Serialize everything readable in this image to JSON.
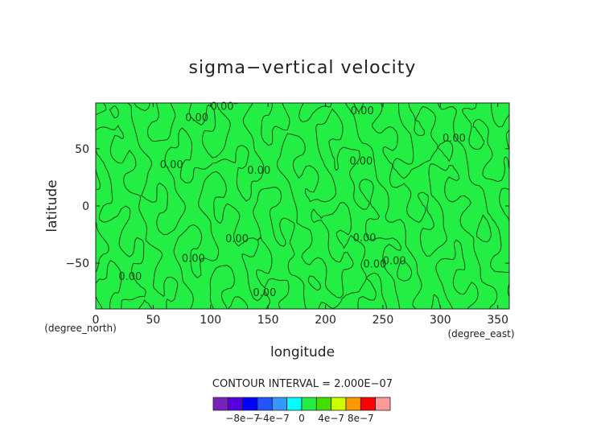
{
  "chart_data": {
    "type": "heatmap",
    "title": "sigma−vertical velocity",
    "xlabel": "longitude",
    "ylabel": "latitude",
    "x_unit": "(degree_east)",
    "y_unit": "(degree_north)",
    "xlim": [
      0,
      360
    ],
    "ylim": [
      -90,
      90
    ],
    "x_ticks": [
      0,
      50,
      100,
      150,
      200,
      250,
      300,
      350
    ],
    "y_ticks": [
      -50,
      0,
      50
    ],
    "y_tick_labels": [
      "−50",
      "0",
      "50"
    ],
    "field_color": "#22ee44",
    "contour_color": "#1a4a1a",
    "contour_interval_text": "CONTOUR INTERVAL = 2.000E−07",
    "contour_labels": [
      {
        "text": "0.00",
        "lon": 110,
        "lat": 87
      },
      {
        "text": "0.00",
        "lon": 88,
        "lat": 77
      },
      {
        "text": "0.00",
        "lon": 232,
        "lat": 83
      },
      {
        "text": "0.00",
        "lon": 312,
        "lat": 59
      },
      {
        "text": "0.00",
        "lon": 66,
        "lat": 36
      },
      {
        "text": "0.00",
        "lon": 142,
        "lat": 31
      },
      {
        "text": "0.00",
        "lon": 231,
        "lat": 39
      },
      {
        "text": "0.00",
        "lon": 123,
        "lat": -29
      },
      {
        "text": "0.00",
        "lon": 234,
        "lat": -28
      },
      {
        "text": "0.00",
        "lon": 85,
        "lat": -46
      },
      {
        "text": "0.00",
        "lon": 243,
        "lat": -51
      },
      {
        "text": "0.00",
        "lon": 260,
        "lat": -48
      },
      {
        "text": "0.00",
        "lon": 30,
        "lat": -62
      },
      {
        "text": "0.00",
        "lon": 147,
        "lat": -76
      }
    ],
    "colorbar": {
      "colors": [
        "#7722bb",
        "#5500dd",
        "#0000ff",
        "#2255ff",
        "#3399ff",
        "#00ffff",
        "#22ee44",
        "#44dd00",
        "#ccff00",
        "#ff9900",
        "#ff0000",
        "#ff9999"
      ],
      "labels": [
        "−8e−7",
        "−4e−7",
        "0",
        "4e−7",
        "8e−7"
      ]
    }
  }
}
